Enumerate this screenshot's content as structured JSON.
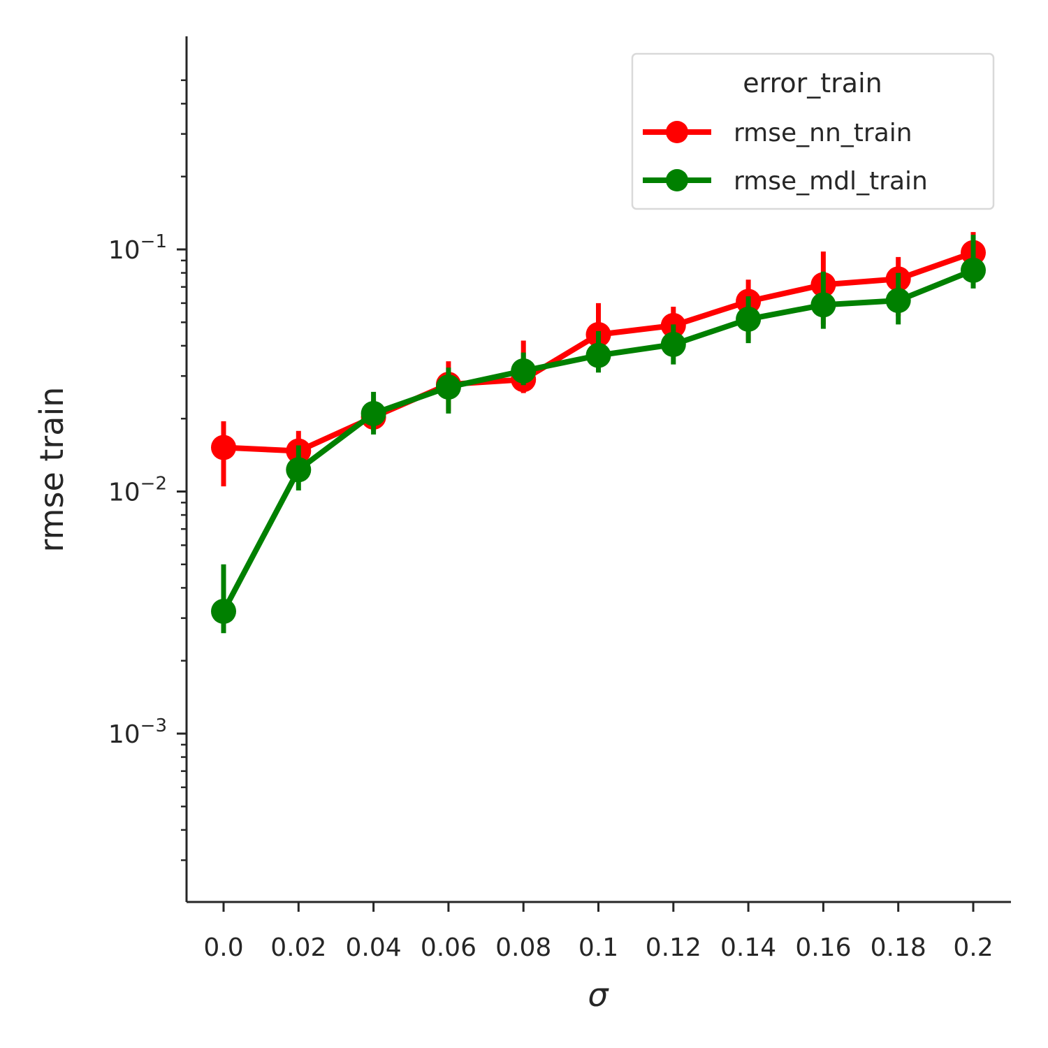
{
  "chart_data": {
    "type": "line",
    "xlabel": "σ",
    "ylabel": "rmse train",
    "y_scale": "log",
    "ylim": [
      0.00025,
      0.6
    ],
    "categories": [
      "0.0",
      "0.02",
      "0.04",
      "0.06",
      "0.08",
      "0.1",
      "0.12",
      "0.14",
      "0.16",
      "0.18",
      "0.2"
    ],
    "y_ticks": [
      {
        "base": "10",
        "exp": "−1",
        "value": 0.1
      },
      {
        "base": "10",
        "exp": "−2",
        "value": 0.01
      },
      {
        "base": "10",
        "exp": "−3",
        "value": 0.001
      }
    ],
    "grid": false,
    "legend": {
      "title": "error_train",
      "position": "top-right"
    },
    "series": [
      {
        "name": "rmse_nn_train",
        "color": "#ff0000",
        "values": [
          0.0152,
          0.0147,
          0.0203,
          0.0277,
          0.029,
          0.0445,
          0.0485,
          0.061,
          0.0715,
          0.0755,
          0.097
        ],
        "err_low": [
          0.0105,
          0.0117,
          0.0178,
          0.0215,
          0.0255,
          0.0335,
          0.036,
          0.042,
          0.049,
          0.053,
          0.081
        ],
        "err_high": [
          0.0195,
          0.0178,
          0.024,
          0.0345,
          0.042,
          0.06,
          0.058,
          0.075,
          0.098,
          0.093,
          0.118
        ]
      },
      {
        "name": "rmse_mdl_train",
        "color": "#008000",
        "values": [
          0.0032,
          0.0123,
          0.021,
          0.027,
          0.0315,
          0.0365,
          0.0405,
          0.0515,
          0.059,
          0.0615,
          0.082
        ],
        "err_low": [
          0.0026,
          0.0101,
          0.0172,
          0.021,
          0.0275,
          0.031,
          0.0335,
          0.041,
          0.047,
          0.049,
          0.069
        ],
        "err_high": [
          0.005,
          0.0155,
          0.0258,
          0.0325,
          0.0375,
          0.046,
          0.049,
          0.064,
          0.081,
          0.08,
          0.115
        ]
      }
    ]
  }
}
